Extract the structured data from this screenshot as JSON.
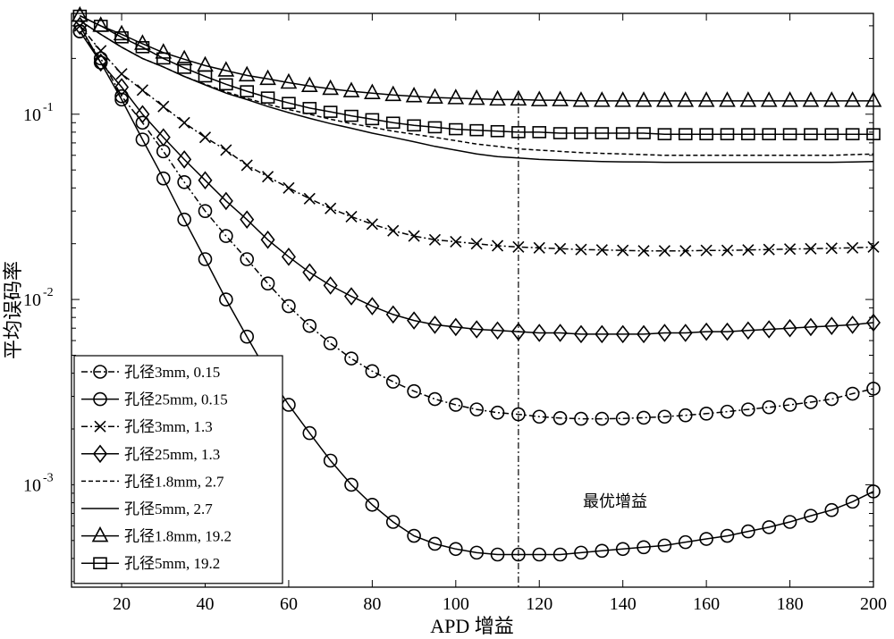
{
  "chart_data": {
    "type": "line",
    "title": "",
    "xlabel": "APD 增益",
    "ylabel": "平均误码率",
    "xlim": [
      8,
      200
    ],
    "ylim": [
      0.00028,
      0.35
    ],
    "yscale": "log",
    "x_ticks": [
      20,
      40,
      60,
      80,
      100,
      120,
      140,
      160,
      180,
      200
    ],
    "y_ticks": [
      {
        "value": 0.001,
        "base": "10",
        "exp": "-3"
      },
      {
        "value": 0.01,
        "base": "10",
        "exp": "-2"
      },
      {
        "value": 0.1,
        "base": "10",
        "exp": "-1"
      }
    ],
    "grid": false,
    "legend_position": "lower-left",
    "annotation": {
      "text": "最优增益",
      "x": 115
    },
    "x": [
      10,
      15,
      20,
      25,
      30,
      35,
      40,
      45,
      50,
      55,
      60,
      65,
      70,
      75,
      80,
      85,
      90,
      95,
      100,
      105,
      110,
      115,
      120,
      125,
      130,
      135,
      140,
      145,
      150,
      155,
      160,
      165,
      170,
      175,
      180,
      185,
      190,
      195,
      200
    ],
    "series": [
      {
        "name": "孔径3mm, 0.15",
        "marker": "circle",
        "dash": "dashdot",
        "values": [
          0.28,
          0.2,
          0.125,
          0.09,
          0.063,
          0.043,
          0.03,
          0.022,
          0.0165,
          0.0122,
          0.0092,
          0.0072,
          0.0058,
          0.0048,
          0.0041,
          0.0036,
          0.0032,
          0.0029,
          0.0027,
          0.00255,
          0.00245,
          0.0024,
          0.00233,
          0.00229,
          0.00227,
          0.00227,
          0.00228,
          0.0023,
          0.00233,
          0.00237,
          0.00242,
          0.00248,
          0.00255,
          0.00262,
          0.0027,
          0.00279,
          0.0029,
          0.0031,
          0.0033
        ]
      },
      {
        "name": "孔径25mm, 0.15",
        "marker": "circle",
        "dash": "solid",
        "values": [
          0.28,
          0.19,
          0.12,
          0.073,
          0.045,
          0.027,
          0.0165,
          0.01,
          0.0063,
          0.004,
          0.0027,
          0.0019,
          0.00135,
          0.001,
          0.00078,
          0.00063,
          0.00053,
          0.00048,
          0.00045,
          0.00043,
          0.00042,
          0.00042,
          0.00042,
          0.00042,
          0.00043,
          0.00044,
          0.00045,
          0.00046,
          0.00047,
          0.00049,
          0.00051,
          0.00053,
          0.00056,
          0.00059,
          0.00063,
          0.00068,
          0.00073,
          0.00081,
          0.00092
        ]
      },
      {
        "name": "孔径3mm, 1.3",
        "marker": "x",
        "dash": "dashdot",
        "values": [
          0.3,
          0.22,
          0.165,
          0.135,
          0.11,
          0.09,
          0.075,
          0.064,
          0.053,
          0.046,
          0.04,
          0.035,
          0.031,
          0.028,
          0.0255,
          0.0235,
          0.022,
          0.021,
          0.0205,
          0.02,
          0.0195,
          0.0192,
          0.019,
          0.0188,
          0.0186,
          0.0185,
          0.0184,
          0.0183,
          0.0183,
          0.0183,
          0.0184,
          0.0184,
          0.0185,
          0.0186,
          0.0187,
          0.0188,
          0.0189,
          0.019,
          0.0192
        ]
      },
      {
        "name": "孔径25mm, 1.3",
        "marker": "diamond",
        "dash": "solid",
        "values": [
          0.3,
          0.19,
          0.14,
          0.1,
          0.075,
          0.057,
          0.044,
          0.034,
          0.027,
          0.021,
          0.017,
          0.014,
          0.0119,
          0.0104,
          0.0092,
          0.0083,
          0.0077,
          0.0073,
          0.0071,
          0.0069,
          0.0068,
          0.0067,
          0.0066,
          0.0066,
          0.0065,
          0.0065,
          0.0065,
          0.0065,
          0.0066,
          0.0066,
          0.0067,
          0.0067,
          0.0068,
          0.0069,
          0.007,
          0.0071,
          0.0072,
          0.0073,
          0.0075
        ]
      },
      {
        "name": "孔径1.8mm, 2.7",
        "marker": "none",
        "dash": "dashed",
        "values": [
          0.32,
          0.27,
          0.23,
          0.2,
          0.18,
          0.16,
          0.145,
          0.132,
          0.122,
          0.113,
          0.106,
          0.1,
          0.094,
          0.089,
          0.085,
          0.081,
          0.078,
          0.075,
          0.072,
          0.069,
          0.067,
          0.065,
          0.064,
          0.063,
          0.062,
          0.0615,
          0.061,
          0.0605,
          0.06,
          0.06,
          0.06,
          0.06,
          0.06,
          0.06,
          0.06,
          0.06,
          0.06,
          0.0605,
          0.061
        ]
      },
      {
        "name": "孔径5mm, 2.7",
        "marker": "none",
        "dash": "solid",
        "values": [
          0.32,
          0.27,
          0.23,
          0.2,
          0.18,
          0.16,
          0.144,
          0.13,
          0.12,
          0.11,
          0.102,
          0.095,
          0.089,
          0.084,
          0.079,
          0.075,
          0.071,
          0.067,
          0.064,
          0.061,
          0.059,
          0.058,
          0.057,
          0.0565,
          0.056,
          0.0555,
          0.0553,
          0.0552,
          0.055,
          0.055,
          0.055,
          0.055,
          0.055,
          0.055,
          0.055,
          0.055,
          0.055,
          0.0552,
          0.0555
        ]
      },
      {
        "name": "孔径1.8mm, 19.2",
        "marker": "triangle",
        "dash": "solid",
        "values": [
          0.34,
          0.3,
          0.27,
          0.24,
          0.215,
          0.198,
          0.183,
          0.172,
          0.162,
          0.155,
          0.148,
          0.142,
          0.137,
          0.133,
          0.13,
          0.127,
          0.125,
          0.123,
          0.122,
          0.121,
          0.12,
          0.12,
          0.119,
          0.119,
          0.118,
          0.118,
          0.118,
          0.118,
          0.118,
          0.118,
          0.118,
          0.118,
          0.118,
          0.118,
          0.118,
          0.118,
          0.118,
          0.118,
          0.118
        ]
      },
      {
        "name": "孔径5mm, 19.2",
        "marker": "square",
        "dash": "solid",
        "values": [
          0.34,
          0.3,
          0.26,
          0.23,
          0.2,
          0.178,
          0.16,
          0.145,
          0.133,
          0.123,
          0.115,
          0.108,
          0.103,
          0.098,
          0.094,
          0.09,
          0.087,
          0.085,
          0.083,
          0.082,
          0.081,
          0.08,
          0.08,
          0.079,
          0.079,
          0.079,
          0.079,
          0.079,
          0.078,
          0.078,
          0.078,
          0.078,
          0.078,
          0.078,
          0.078,
          0.078,
          0.078,
          0.078,
          0.078
        ]
      }
    ]
  }
}
